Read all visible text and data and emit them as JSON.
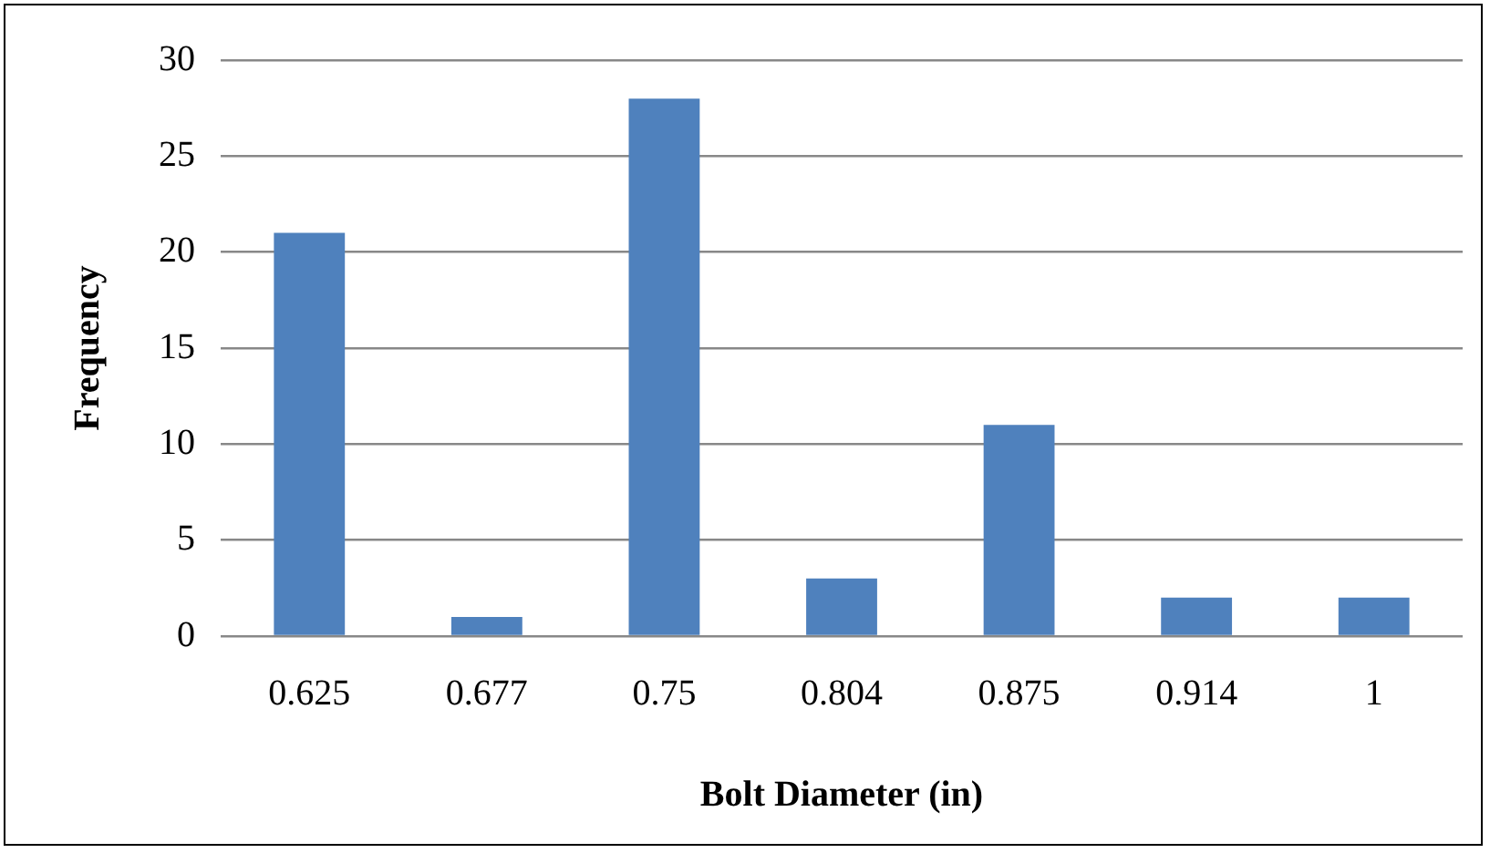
{
  "chart_data": {
    "type": "bar",
    "xlabel": "Bolt Diameter (in)",
    "ylabel": "Frequency",
    "categories": [
      "0.625",
      "0.677",
      "0.75",
      "0.804",
      "0.875",
      "0.914",
      "1"
    ],
    "values": [
      21,
      1,
      28,
      3,
      11,
      2,
      2
    ],
    "color": "#4f81bd",
    "ylim": [
      0,
      30
    ],
    "yticks": [
      0,
      5,
      10,
      15,
      20,
      25,
      30
    ],
    "grid": "y",
    "legend": false
  }
}
